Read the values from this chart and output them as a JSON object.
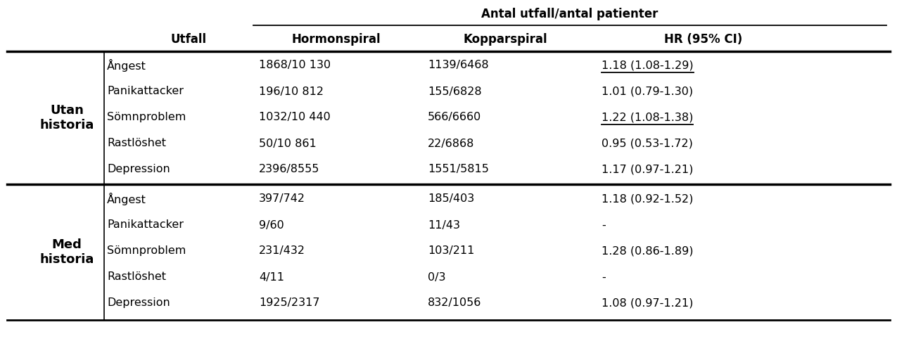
{
  "span_title": "Antal utfall/antal patienter",
  "col_headers": [
    "Utfall",
    "Hormonspiral",
    "Kopparspiral",
    "HR (95% CI)"
  ],
  "group1_label": "Utan\nhistoria",
  "group2_label": "Med\nhistoria",
  "group1_rows": [
    [
      "Ångest",
      "1868/10 130",
      "1139/6468",
      "1.18 (1.08-1.29)",
      true
    ],
    [
      "Panikattacker",
      "196/10 812",
      "155/6828",
      "1.01 (0.79-1.30)",
      false
    ],
    [
      "Sömnproblem",
      "1032/10 440",
      "566/6660",
      "1.22 (1.08-1.38)",
      true
    ],
    [
      "Rastlöshet",
      "50/10 861",
      "22/6868",
      "0.95 (0.53-1.72)",
      false
    ],
    [
      "Depression",
      "2396/8555",
      "1551/5815",
      "1.17 (0.97-1.21)",
      false
    ]
  ],
  "group2_rows": [
    [
      "Ångest",
      "397/742",
      "185/403",
      "1.18 (0.92-1.52)",
      false
    ],
    [
      "Panikattacker",
      "9/60",
      "11/43",
      "-",
      false
    ],
    [
      "Sömnproblem",
      "231/432",
      "103/211",
      "1.28 (0.86-1.89)",
      false
    ],
    [
      "Rastlöshet",
      "4/11",
      "0/3",
      "-",
      false
    ],
    [
      "Depression",
      "1925/2317",
      "832/1056",
      "1.08 (0.97-1.21)",
      false
    ]
  ],
  "bg": "#ffffff",
  "fg": "#000000",
  "fig_w": 12.75,
  "fig_h": 4.92,
  "dpi": 100
}
